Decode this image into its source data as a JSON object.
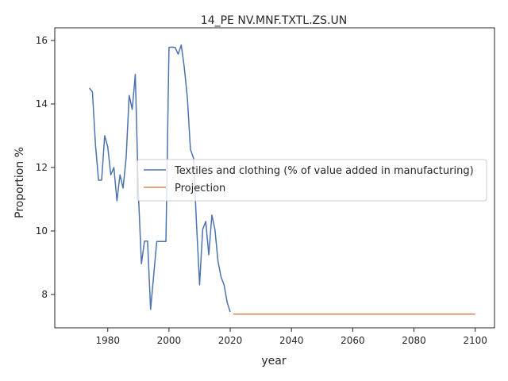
{
  "chart_data": {
    "type": "line",
    "title": "14_PE NV.MNF.TXTL.ZS.UN",
    "xlabel": "year",
    "ylabel": "Proportion %",
    "xlim": [
      1962.7,
      2106.3
    ],
    "ylim": [
      6.95,
      16.4
    ],
    "xticks": [
      1980,
      2000,
      2020,
      2040,
      2060,
      2080,
      2100
    ],
    "yticks": [
      8,
      10,
      12,
      14,
      16
    ],
    "grid": false,
    "legend_position": "center-right",
    "series": [
      {
        "name": "Textiles and clothing (% of value added in manufacturing)",
        "color": "#4c72b0",
        "x": [
          1974,
          1975,
          1976,
          1977,
          1978,
          1979,
          1980,
          1981,
          1982,
          1983,
          1984,
          1985,
          1986,
          1987,
          1988,
          1989,
          1990,
          1991,
          1992,
          1993,
          1994,
          1995,
          1996,
          1997,
          1998,
          1999,
          2000,
          2001,
          2002,
          2003,
          2004,
          2005,
          2006,
          2007,
          2008,
          2009,
          2010,
          2011,
          2012,
          2013,
          2014,
          2015,
          2016,
          2017,
          2018,
          2019,
          2020
        ],
        "y": [
          14.5,
          14.38,
          12.7,
          11.6,
          11.6,
          13.0,
          12.65,
          11.77,
          12.0,
          10.95,
          11.77,
          11.35,
          12.3,
          14.27,
          13.83,
          14.93,
          11.2,
          8.97,
          9.68,
          9.68,
          7.53,
          8.6,
          9.67,
          9.67,
          9.67,
          9.67,
          15.78,
          15.79,
          15.78,
          15.57,
          15.86,
          15.15,
          14.2,
          12.57,
          12.3,
          10.2,
          8.3,
          10.05,
          10.3,
          9.25,
          10.5,
          10.05,
          9.05,
          8.55,
          8.3,
          7.75,
          7.45
        ]
      },
      {
        "name": "Projection",
        "color": "#dd8452",
        "x": [
          2021,
          2100
        ],
        "y": [
          7.38,
          7.38
        ]
      }
    ]
  }
}
